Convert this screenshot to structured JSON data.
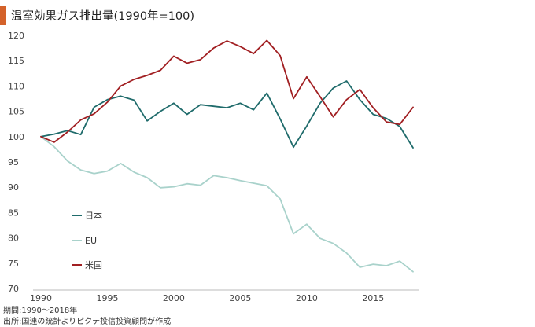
{
  "title": "温室効果ガス排出量(1990年=100)",
  "footer": {
    "period": "期間:1990～2018年",
    "source": "出所:国連の統計よりピクテ投信投資顧問が作成"
  },
  "colors": {
    "accent": "#d4622a",
    "japan": "#1f6b6b",
    "eu": "#a9d2cb",
    "us": "#a11f22"
  },
  "chart_data": {
    "type": "line",
    "title": "温室効果ガス排出量(1990年=100)",
    "xlabel": "",
    "ylabel": "",
    "x": [
      1990,
      1991,
      1992,
      1993,
      1994,
      1995,
      1996,
      1997,
      1998,
      1999,
      2000,
      2001,
      2002,
      2003,
      2004,
      2005,
      2006,
      2007,
      2008,
      2009,
      2010,
      2011,
      2012,
      2013,
      2014,
      2015,
      2016,
      2017,
      2018
    ],
    "xlim": [
      1990,
      2018
    ],
    "ylim": [
      70,
      120
    ],
    "xticks": [
      1990,
      1995,
      2000,
      2005,
      2010,
      2015
    ],
    "yticks": [
      70,
      75,
      80,
      85,
      90,
      95,
      100,
      105,
      110,
      115,
      120
    ],
    "grid": false,
    "legend_position": "left-bottom",
    "series": [
      {
        "name": "日本",
        "color": "#1f6b6b",
        "values": [
          100,
          100.5,
          101.2,
          100.4,
          105.8,
          107.3,
          108.0,
          107.2,
          103.1,
          105.0,
          106.6,
          104.4,
          106.3,
          106.0,
          105.7,
          106.6,
          105.3,
          108.6,
          103.5,
          97.9,
          102.1,
          106.6,
          109.6,
          111.0,
          107.3,
          104.4,
          103.6,
          102.0,
          97.8
        ]
      },
      {
        "name": "EU",
        "color": "#a9d2cb",
        "values": [
          100,
          98.0,
          95.2,
          93.4,
          92.7,
          93.2,
          94.7,
          93.0,
          91.9,
          89.9,
          90.1,
          90.7,
          90.4,
          92.3,
          91.9,
          91.3,
          90.8,
          90.3,
          87.7,
          80.8,
          82.7,
          79.9,
          78.9,
          77.0,
          74.2,
          74.8,
          74.5,
          75.4,
          73.3
        ]
      },
      {
        "name": "米国",
        "color": "#a11f22",
        "values": [
          100,
          98.9,
          100.9,
          103.3,
          104.5,
          106.8,
          110.0,
          111.3,
          112.1,
          113.1,
          115.9,
          114.5,
          115.2,
          117.5,
          118.9,
          117.8,
          116.4,
          119.0,
          116.0,
          107.5,
          111.8,
          107.9,
          103.9,
          107.3,
          109.3,
          105.7,
          102.9,
          102.4,
          105.8
        ]
      }
    ]
  }
}
